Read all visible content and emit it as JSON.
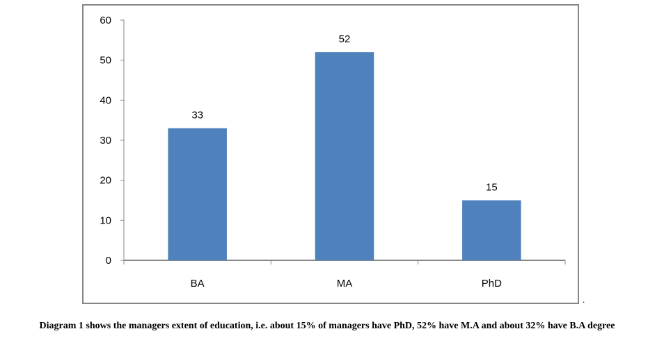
{
  "chart_data": {
    "type": "bar",
    "categories": [
      "BA",
      "MA",
      "PhD"
    ],
    "values": [
      33,
      52,
      15
    ],
    "data_labels": [
      "33",
      "52",
      "15"
    ],
    "ylim": [
      0,
      60
    ],
    "yticks": [
      "0",
      "10",
      "20",
      "30",
      "40",
      "50",
      "60"
    ],
    "bar_color": "#4f81bd",
    "grid": false,
    "legend": "none"
  },
  "trailing_mark": ".",
  "caption": "Diagram 1 shows the managers extent of education, i.e. about 15% of managers have PhD, 52% have M.A and about 32% have B.A degree"
}
